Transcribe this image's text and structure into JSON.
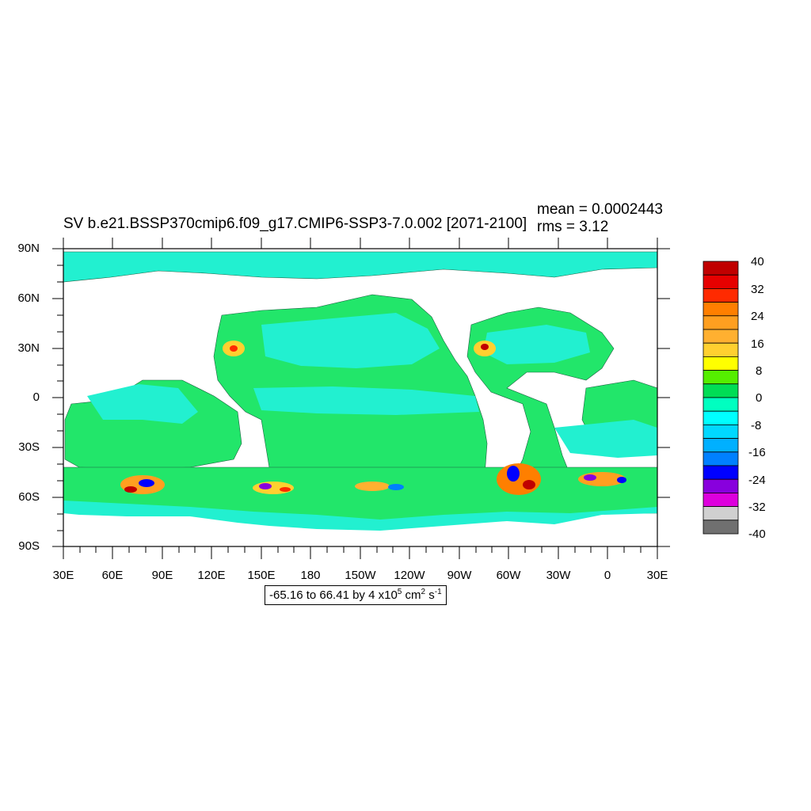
{
  "title": "SV b.e21.BSSP370cmip6.f09_g17.CMIP6-SSP3-7.0.002 [2071-2100]",
  "stats": {
    "mean": "mean = 0.0002443",
    "rms": "rms = 3.12"
  },
  "axes": {
    "y_ticks": [
      "90N",
      "60N",
      "30N",
      "0",
      "30S",
      "60S",
      "90S"
    ],
    "x_ticks": [
      "30E",
      "60E",
      "90E",
      "120E",
      "150E",
      "180",
      "150W",
      "120W",
      "90W",
      "60W",
      "30W",
      "0",
      "30E"
    ]
  },
  "range_note": {
    "text": "-65.16 to 66.41 by 4 x10",
    "exp": "5",
    "unit1": " cm",
    "exp2": "2",
    "unit2": " s",
    "exp3": "-1"
  },
  "colorbar": {
    "labels": [
      "40",
      "32",
      "24",
      "16",
      "8",
      "0",
      "-8",
      "-16",
      "-24",
      "-32",
      "-40"
    ],
    "colors": [
      "#c00000",
      "#e60000",
      "#ff2a00",
      "#ff7f00",
      "#ff9f20",
      "#ffb030",
      "#ffd030",
      "#ffff00",
      "#55ee00",
      "#00dd55",
      "#00ffc0",
      "#00ffff",
      "#00d8ff",
      "#00b0ff",
      "#0080ff",
      "#0000ff",
      "#8800dd",
      "#dd00dd",
      "#d0d0d0",
      "#707070"
    ]
  },
  "colors": {
    "ocean_main": "#22e66a",
    "ocean_alt": "#22f0d0",
    "land": "#ffffff"
  }
}
